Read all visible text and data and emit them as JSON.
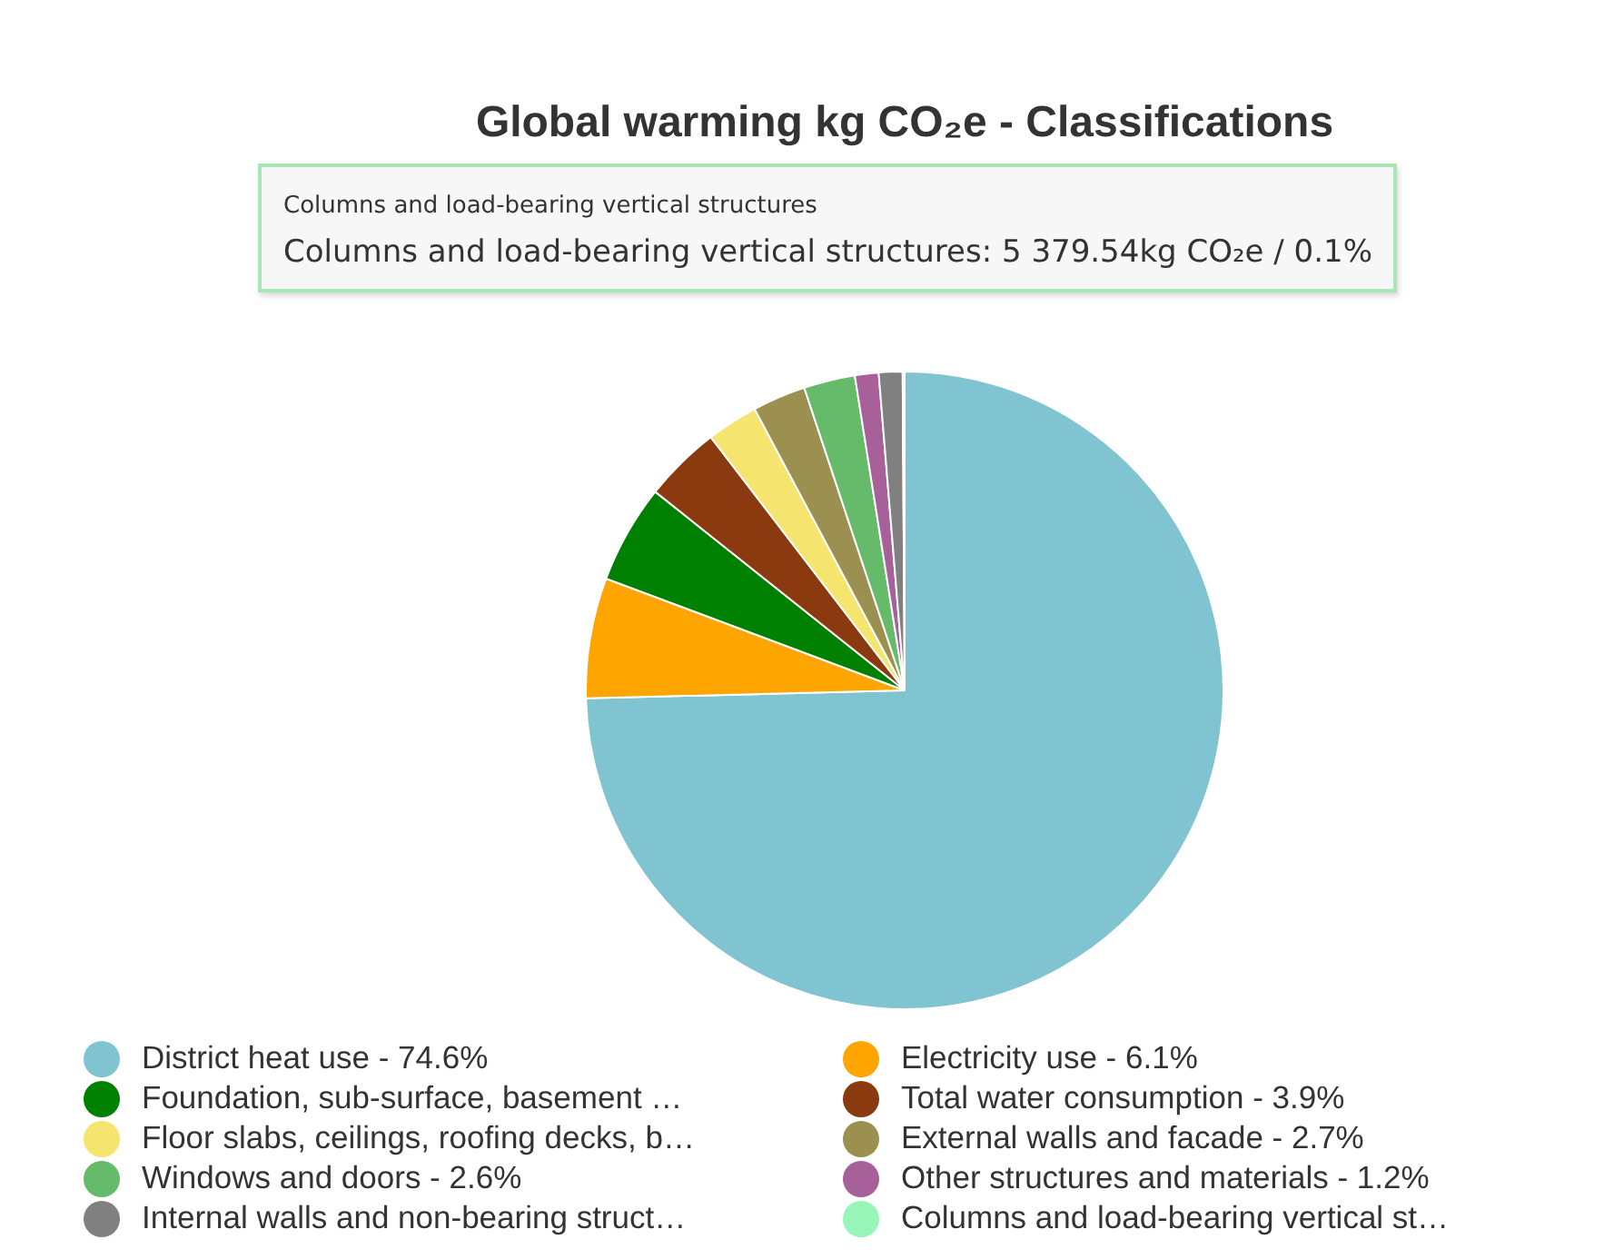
{
  "chart_data": {
    "type": "pie",
    "title": "Global warming kg CO₂e - Classifications",
    "categories": [
      "District heat use - 74.6%",
      "Electricity use - 6.1%",
      "Foundation, sub-surface, basement …",
      "Total water consumption - 3.9%",
      "Floor slabs, ceilings, roofing decks, b…",
      "External walls and facade - 2.7%",
      "Windows and doors - 2.6%",
      "Other structures and materials - 1.2%",
      "Internal walls and non-bearing struct…",
      "Columns and load-bearing vertical st…"
    ],
    "values": [
      74.6,
      6.1,
      5.0,
      3.9,
      2.6,
      2.7,
      2.6,
      1.2,
      1.2,
      0.1
    ],
    "colors": [
      "#7fc4d0",
      "#ffa500",
      "#008000",
      "#8b3a0f",
      "#f5e46e",
      "#9b9050",
      "#66bb6a",
      "#a8609a",
      "#808080",
      "#98f5b8"
    ],
    "legend": "bottom",
    "annotations": [
      "Columns and load-bearing vertical structures",
      "Columns and load-bearing vertical structures: 5 379.54kg CO₂e / 0.1%"
    ]
  }
}
